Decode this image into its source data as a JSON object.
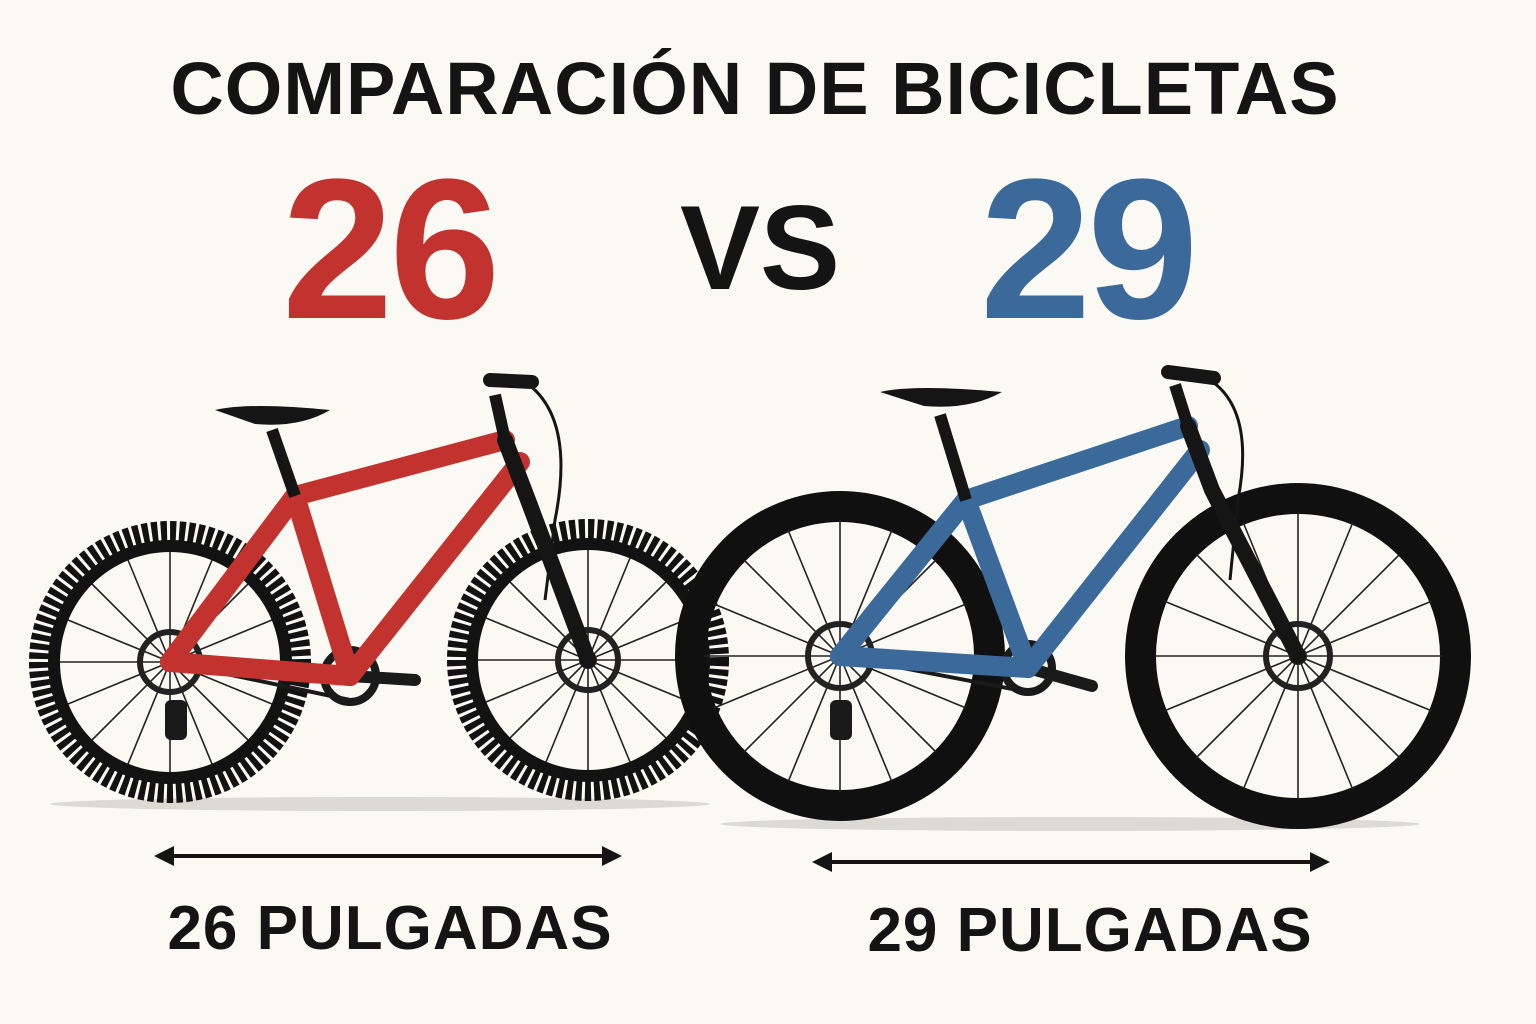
{
  "header": {
    "title": "COMPARACIÓN DE BICICLETAS",
    "left_number": "26",
    "vs": "VS",
    "right_number": "29"
  },
  "bikes": [
    {
      "label": "26 PULGADAS",
      "frame_color": "#c2322f"
    },
    {
      "label": "29 PULGADAS",
      "frame_color": "#3b6a9a"
    }
  ],
  "colors": {
    "background": "#fbf9f3",
    "text": "#141414",
    "tire": "#121212"
  }
}
